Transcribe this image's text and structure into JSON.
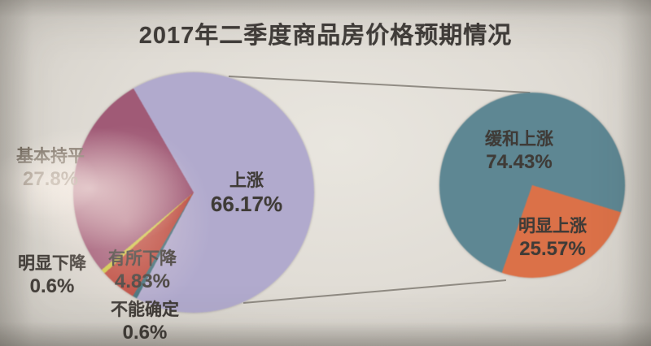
{
  "page": {
    "title": "2017年二季度商品房价格预期情况"
  },
  "chart_data": [
    {
      "type": "pie",
      "name": "main-pie",
      "title": "2017年二季度商品房价格预期情况",
      "start_angle_deg": 330,
      "direction": "clockwise",
      "legend": "none",
      "label_style": "category name + percent; large slice labeled inside, small slices outside",
      "slices": [
        {
          "name": "上涨",
          "value": 66.17,
          "pct_label": "66.17%",
          "color": "#b1aacd"
        },
        {
          "name": "不能确定",
          "value": 0.6,
          "pct_label": "0.6%",
          "color": "#41707a"
        },
        {
          "name": "有所下降",
          "value": 4.83,
          "pct_label": "4.83%",
          "color": "#bc4a3e"
        },
        {
          "name": "明显下降",
          "value": 0.6,
          "pct_label": "0.6%",
          "color": "#cdc743"
        },
        {
          "name": "基本持平",
          "value": 27.8,
          "pct_label": "27.8%",
          "color": "#a05a76"
        }
      ]
    },
    {
      "type": "pie",
      "name": "secondary-pie",
      "detail_of": "上涨",
      "start_angle_deg": 107,
      "direction": "clockwise",
      "legend": "none",
      "slices": [
        {
          "name": "明显上涨",
          "value": 25.57,
          "pct_label": "25.57%",
          "color": "#db7148"
        },
        {
          "name": "缓和上涨",
          "value": 74.43,
          "pct_label": "74.43%",
          "color": "#5e8793"
        }
      ]
    }
  ]
}
